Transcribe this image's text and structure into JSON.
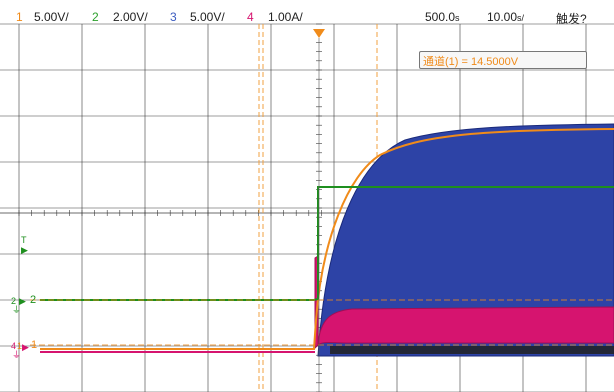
{
  "header": {
    "ch1": {
      "num": "1",
      "scale": "5.00V/",
      "color": "#f08b1a"
    },
    "ch2": {
      "num": "2",
      "scale": "2.00V/",
      "color": "#2ca02c"
    },
    "ch3": {
      "num": "3",
      "scale": "5.00V/",
      "color": "#3b5bbf"
    },
    "ch4": {
      "num": "4",
      "scale": "1.00A/",
      "color": "#d6146f"
    },
    "time_delay": "500.0",
    "time_delay_unit": "s",
    "time_div": "10.00",
    "time_div_unit": "s/",
    "trigger_status": "触发?"
  },
  "measurement": {
    "text": "通道(1) = 14.5000V"
  },
  "markers": {
    "trigger_level": "T",
    "ch2_marker": "2",
    "ch2_ref": "2",
    "ch1_marker": "1",
    "ch4_marker": "4",
    "ch1_ref": "1"
  },
  "colors": {
    "grid": "#3a3a3a",
    "ch1": "#f08b1a",
    "ch2": "#1e8f1e",
    "ch3": "#2d43a6",
    "ch4": "#d6146f",
    "cursor": "#f0a040"
  }
}
